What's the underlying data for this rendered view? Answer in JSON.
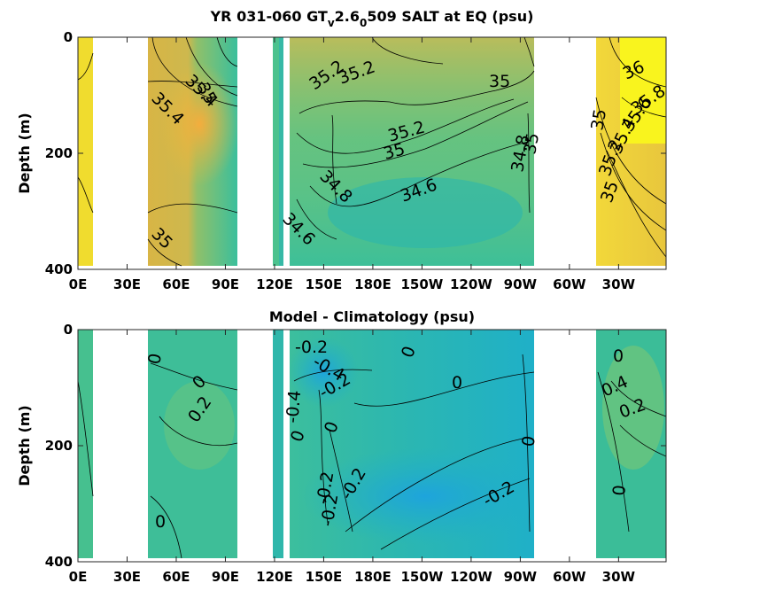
{
  "chart_data": [
    {
      "type": "heatmap",
      "title_main": "YR 031-060 GT",
      "title_sub1": "v",
      "title_mid": "2.6",
      "title_sub2": "0",
      "title_end": "509 SALT at EQ (psu)",
      "ylabel": "Depth (m)",
      "xlabel": "",
      "x_ticks": [
        "0E",
        "30E",
        "60E",
        "90E",
        "120E",
        "150E",
        "180E",
        "150W",
        "120W",
        "90W",
        "60W",
        "30W"
      ],
      "y_ticks": [
        "0",
        "200",
        "400"
      ],
      "ylim": [
        0,
        400
      ],
      "y_reversed": true,
      "contour_labels": [
        "35",
        "35.4",
        "35.4",
        "35.2",
        "35.2",
        "35",
        "35.2",
        "35",
        "34.8",
        "35",
        "34.8",
        "34.6",
        "34.6",
        "35",
        "36",
        "35.8",
        "35.6",
        "35.4",
        "35.2",
        "35",
        "35"
      ]
    },
    {
      "type": "heatmap",
      "title": "Model - Climatology (psu)",
      "ylabel": "Depth (m)",
      "xlabel": "",
      "x_ticks": [
        "0E",
        "30E",
        "60E",
        "90E",
        "120E",
        "150E",
        "180E",
        "150W",
        "120W",
        "90W",
        "60W",
        "30W"
      ],
      "y_ticks": [
        "0",
        "200",
        "400"
      ],
      "ylim": [
        0,
        400
      ],
      "y_reversed": true,
      "contour_labels": [
        "0",
        "0",
        "0.2",
        "0",
        "-0.2",
        "-0.4",
        "-0.2",
        "0",
        "0",
        "-0.4",
        "0",
        "0",
        "-0.2",
        "-0.2",
        "-0.2",
        "0",
        "-0.2",
        "0",
        "0.4",
        "0.2",
        "0"
      ]
    }
  ],
  "colors": {
    "yellow": "#f9fa14",
    "orange": "#f5b83a",
    "gold": "#d9b93e",
    "green": "#5fc280",
    "teal": "#21b8a8",
    "cyan": "#1ea8d6",
    "blue": "#3a7ef0",
    "deep_blue": "#3e26a8"
  }
}
